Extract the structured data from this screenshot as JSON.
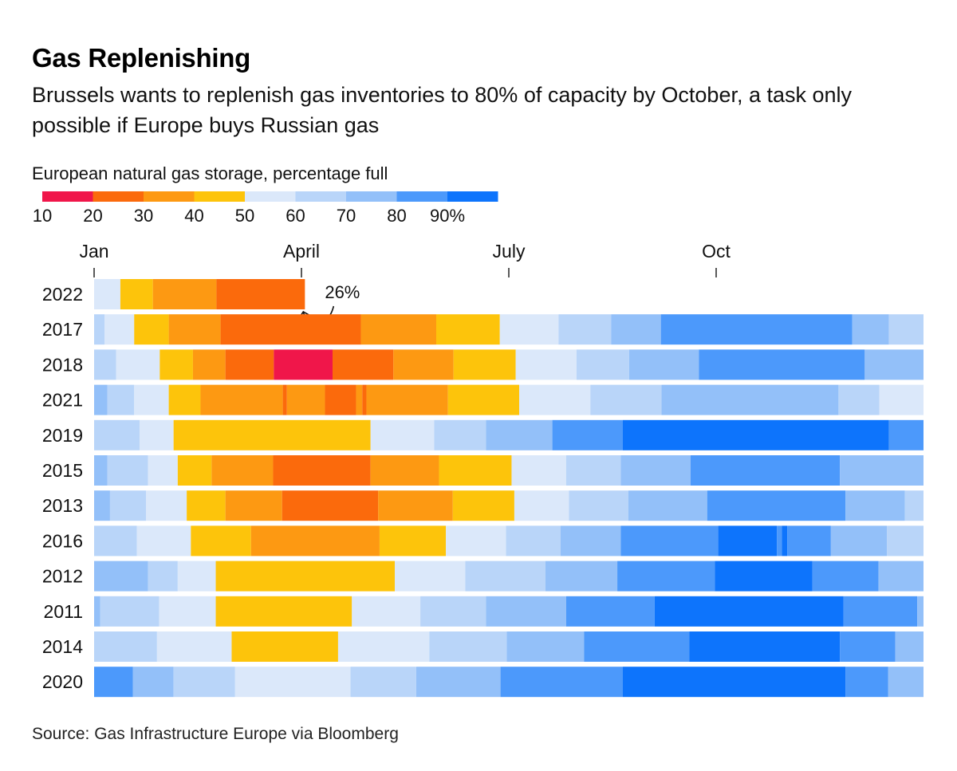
{
  "title": "Gas Replenishing",
  "subtitle": "Brussels wants to replenish gas inventories to 80% of capacity by October, a task only possible if Europe buys Russian gas",
  "legend": {
    "title": "European natural gas storage, percentage full",
    "tick_labels": [
      "10",
      "20",
      "30",
      "40",
      "50",
      "60",
      "70",
      "80",
      "90%"
    ],
    "colors": [
      "#f0164a",
      "#fb6a0c",
      "#fd9912",
      "#fdc40b",
      "#dbe8fa",
      "#b9d5f9",
      "#93c0f9",
      "#4c99fb",
      "#0d74fc"
    ]
  },
  "source": "Source: Gas Infrastructure Europe via Bloomberg",
  "chart_data": {
    "type": "heatmap",
    "value_unit": "percentage full",
    "x_axis": {
      "labels": [
        "Jan",
        "April",
        "July",
        "Oct"
      ],
      "label_months": [
        0,
        3,
        6,
        9
      ],
      "range_months": [
        0,
        12
      ]
    },
    "bins": [
      {
        "min": 0,
        "max": 20,
        "color": "#f0164a"
      },
      {
        "min": 20,
        "max": 30,
        "color": "#fb6a0c"
      },
      {
        "min": 30,
        "max": 40,
        "color": "#fd9912"
      },
      {
        "min": 40,
        "max": 50,
        "color": "#fdc40b"
      },
      {
        "min": 50,
        "max": 60,
        "color": "#dbe8fa"
      },
      {
        "min": 60,
        "max": 70,
        "color": "#b9d5f9"
      },
      {
        "min": 70,
        "max": 80,
        "color": "#93c0f9"
      },
      {
        "min": 80,
        "max": 90,
        "color": "#4c99fb"
      },
      {
        "min": 90,
        "max": 100,
        "color": "#0d74fc"
      }
    ],
    "annotation": {
      "year": "2022",
      "text": "26%"
    },
    "series": [
      {
        "year": "2022",
        "segments": [
          [
            0.0,
            0.38,
            55
          ],
          [
            0.38,
            0.85,
            45
          ],
          [
            0.85,
            1.77,
            35
          ],
          [
            1.77,
            3.05,
            25
          ]
        ]
      },
      {
        "year": "2017",
        "segments": [
          [
            0.0,
            0.15,
            65
          ],
          [
            0.15,
            0.58,
            55
          ],
          [
            0.58,
            1.08,
            45
          ],
          [
            1.08,
            1.83,
            35
          ],
          [
            1.83,
            3.86,
            25
          ],
          [
            3.86,
            4.95,
            35
          ],
          [
            4.95,
            5.87,
            45
          ],
          [
            5.87,
            6.72,
            55
          ],
          [
            6.72,
            7.48,
            65
          ],
          [
            7.48,
            8.2,
            75
          ],
          [
            8.2,
            10.97,
            85
          ],
          [
            10.97,
            11.5,
            75
          ],
          [
            11.5,
            12.0,
            65
          ]
        ]
      },
      {
        "year": "2018",
        "segments": [
          [
            0.0,
            0.32,
            65
          ],
          [
            0.32,
            0.95,
            55
          ],
          [
            0.95,
            1.43,
            45
          ],
          [
            1.43,
            1.9,
            35
          ],
          [
            1.9,
            2.6,
            25
          ],
          [
            2.6,
            3.45,
            15
          ],
          [
            3.45,
            4.33,
            25
          ],
          [
            4.33,
            5.2,
            35
          ],
          [
            5.2,
            6.1,
            45
          ],
          [
            6.1,
            6.98,
            55
          ],
          [
            6.98,
            7.74,
            65
          ],
          [
            7.74,
            8.75,
            75
          ],
          [
            8.75,
            11.15,
            85
          ],
          [
            11.15,
            12.0,
            75
          ]
        ]
      },
      {
        "year": "2021",
        "segments": [
          [
            0.0,
            0.19,
            75
          ],
          [
            0.19,
            0.58,
            65
          ],
          [
            0.58,
            1.08,
            55
          ],
          [
            1.08,
            1.54,
            45
          ],
          [
            1.54,
            2.73,
            35
          ],
          [
            2.73,
            2.79,
            25
          ],
          [
            2.79,
            3.34,
            35
          ],
          [
            3.34,
            3.79,
            25
          ],
          [
            3.79,
            3.88,
            35
          ],
          [
            3.88,
            3.94,
            25
          ],
          [
            3.94,
            5.12,
            35
          ],
          [
            5.12,
            6.15,
            45
          ],
          [
            6.15,
            7.18,
            55
          ],
          [
            7.18,
            8.21,
            65
          ],
          [
            8.21,
            10.77,
            75
          ],
          [
            10.77,
            11.36,
            65
          ],
          [
            11.36,
            12.0,
            55
          ]
        ]
      },
      {
        "year": "2019",
        "segments": [
          [
            0.0,
            0.66,
            65
          ],
          [
            0.66,
            1.15,
            55
          ],
          [
            1.15,
            4.0,
            45
          ],
          [
            4.0,
            4.92,
            55
          ],
          [
            4.92,
            5.67,
            65
          ],
          [
            5.67,
            6.63,
            75
          ],
          [
            6.63,
            7.65,
            85
          ],
          [
            7.65,
            11.5,
            95
          ],
          [
            11.5,
            12.0,
            85
          ]
        ]
      },
      {
        "year": "2015",
        "segments": [
          [
            0.0,
            0.19,
            75
          ],
          [
            0.19,
            0.78,
            65
          ],
          [
            0.78,
            1.21,
            55
          ],
          [
            1.21,
            1.7,
            45
          ],
          [
            1.7,
            2.59,
            35
          ],
          [
            2.59,
            4.0,
            25
          ],
          [
            4.0,
            4.99,
            35
          ],
          [
            4.99,
            6.04,
            45
          ],
          [
            6.04,
            6.83,
            55
          ],
          [
            6.83,
            7.62,
            65
          ],
          [
            7.62,
            8.63,
            75
          ],
          [
            8.63,
            10.79,
            85
          ],
          [
            10.79,
            12.0,
            75
          ]
        ]
      },
      {
        "year": "2013",
        "segments": [
          [
            0.0,
            0.23,
            75
          ],
          [
            0.23,
            0.75,
            65
          ],
          [
            0.75,
            1.34,
            55
          ],
          [
            1.34,
            1.9,
            45
          ],
          [
            1.9,
            2.72,
            35
          ],
          [
            2.72,
            4.11,
            25
          ],
          [
            4.11,
            5.19,
            35
          ],
          [
            5.19,
            6.08,
            45
          ],
          [
            6.08,
            6.87,
            55
          ],
          [
            6.87,
            7.73,
            65
          ],
          [
            7.73,
            8.87,
            75
          ],
          [
            8.87,
            10.87,
            85
          ],
          [
            10.87,
            11.73,
            75
          ],
          [
            11.73,
            12.0,
            65
          ]
        ]
      },
      {
        "year": "2016",
        "segments": [
          [
            0.0,
            0.62,
            65
          ],
          [
            0.62,
            1.4,
            55
          ],
          [
            1.4,
            2.27,
            45
          ],
          [
            2.27,
            4.13,
            35
          ],
          [
            4.13,
            5.09,
            45
          ],
          [
            5.09,
            5.96,
            55
          ],
          [
            5.96,
            6.75,
            65
          ],
          [
            6.75,
            7.62,
            75
          ],
          [
            7.62,
            9.03,
            85
          ],
          [
            9.03,
            9.88,
            95
          ],
          [
            9.88,
            9.95,
            85
          ],
          [
            9.95,
            10.03,
            95
          ],
          [
            10.03,
            10.66,
            85
          ],
          [
            10.66,
            11.47,
            75
          ],
          [
            11.47,
            12.0,
            65
          ]
        ]
      },
      {
        "year": "2012",
        "segments": [
          [
            0.0,
            0.78,
            75
          ],
          [
            0.78,
            1.21,
            65
          ],
          [
            1.21,
            1.76,
            55
          ],
          [
            1.76,
            4.35,
            45
          ],
          [
            4.35,
            5.37,
            55
          ],
          [
            5.37,
            6.53,
            65
          ],
          [
            6.53,
            7.57,
            75
          ],
          [
            7.57,
            8.98,
            85
          ],
          [
            8.98,
            10.39,
            95
          ],
          [
            10.39,
            11.35,
            85
          ],
          [
            11.35,
            12.0,
            75
          ]
        ]
      },
      {
        "year": "2011",
        "segments": [
          [
            0.0,
            0.09,
            75
          ],
          [
            0.09,
            0.94,
            65
          ],
          [
            0.94,
            1.76,
            55
          ],
          [
            1.76,
            3.73,
            45
          ],
          [
            3.73,
            4.72,
            55
          ],
          [
            4.72,
            5.67,
            65
          ],
          [
            5.67,
            6.83,
            75
          ],
          [
            6.83,
            8.11,
            85
          ],
          [
            8.11,
            10.84,
            95
          ],
          [
            10.84,
            11.91,
            85
          ],
          [
            11.91,
            12.0,
            75
          ]
        ]
      },
      {
        "year": "2014",
        "segments": [
          [
            0.0,
            0.91,
            65
          ],
          [
            0.91,
            1.99,
            55
          ],
          [
            1.99,
            3.53,
            45
          ],
          [
            3.53,
            4.85,
            55
          ],
          [
            4.85,
            5.97,
            65
          ],
          [
            5.97,
            7.09,
            75
          ],
          [
            7.09,
            8.61,
            85
          ],
          [
            8.61,
            10.79,
            95
          ],
          [
            10.79,
            11.59,
            85
          ],
          [
            11.59,
            12.0,
            75
          ]
        ]
      },
      {
        "year": "2020",
        "segments": [
          [
            0.0,
            0.56,
            85
          ],
          [
            0.56,
            1.15,
            75
          ],
          [
            1.15,
            2.04,
            65
          ],
          [
            2.04,
            3.71,
            55
          ],
          [
            3.71,
            4.66,
            65
          ],
          [
            4.66,
            5.88,
            75
          ],
          [
            5.88,
            7.65,
            85
          ],
          [
            7.65,
            10.87,
            95
          ],
          [
            10.87,
            11.49,
            85
          ],
          [
            11.49,
            12.0,
            75
          ]
        ]
      }
    ]
  }
}
